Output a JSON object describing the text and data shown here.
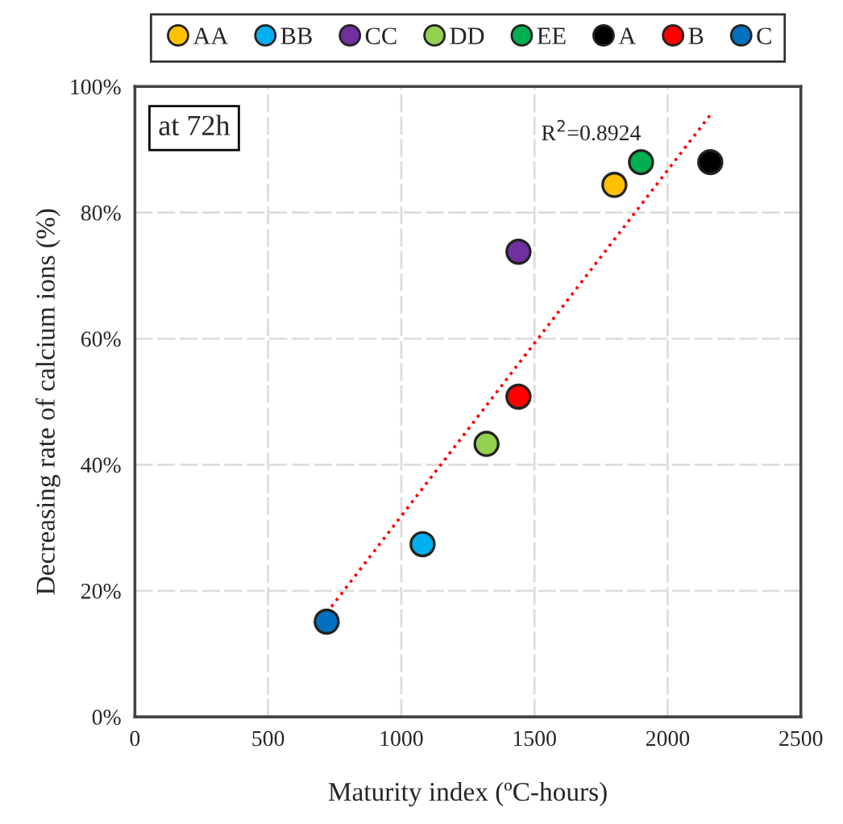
{
  "chart_data": {
    "type": "scatter",
    "xlabel": "Maturity index (ºC-hours)",
    "ylabel": "Decreasing rate of calcium ions (%)",
    "annotations": [
      "at 72h",
      "R$^{2}$=0.8924"
    ],
    "series": [
      {
        "name": "AA",
        "color": "#ffc000",
        "x": [
          1800
        ],
        "values": [
          84.4
        ]
      },
      {
        "name": "BB",
        "color": "#00b0f0",
        "x": [
          1080
        ],
        "values": [
          27.4
        ]
      },
      {
        "name": "CC",
        "color": "#7030a0",
        "x": [
          1440
        ],
        "values": [
          73.8
        ]
      },
      {
        "name": "DD",
        "color": "#92d050",
        "x": [
          1320
        ],
        "values": [
          43.3
        ]
      },
      {
        "name": "EE",
        "color": "#00b050",
        "x": [
          1900
        ],
        "values": [
          88.0
        ]
      },
      {
        "name": "A",
        "color": "#000000",
        "x": [
          2160
        ],
        "values": [
          88.0
        ]
      },
      {
        "name": "B",
        "color": "#ff0000",
        "x": [
          1440
        ],
        "values": [
          50.8
        ]
      },
      {
        "name": "C",
        "color": "#0070c0",
        "x": [
          720
        ],
        "values": [
          15.1
        ]
      },
      {
        "type": "line",
        "color": "#ff0000",
        "line_style": "dotted",
        "marker": "none",
        "x": [
          720,
          2160
        ],
        "values": [
          16.5,
          95.5
        ]
      }
    ],
    "marker": "circle",
    "xlim": [
      0,
      2500
    ],
    "xticks": [
      0,
      500,
      1000,
      1500,
      2000,
      2500
    ],
    "ylim": [
      0,
      100
    ],
    "yticks": [
      {
        "value": 0,
        "label": "0%"
      },
      {
        "value": 20,
        "label": "20%"
      },
      {
        "value": 40,
        "label": "40%"
      },
      {
        "value": 60,
        "label": "60%"
      },
      {
        "value": 80,
        "label": "80%"
      },
      {
        "value": 100,
        "label": "100%"
      }
    ],
    "grid": true,
    "legend": "top"
  }
}
